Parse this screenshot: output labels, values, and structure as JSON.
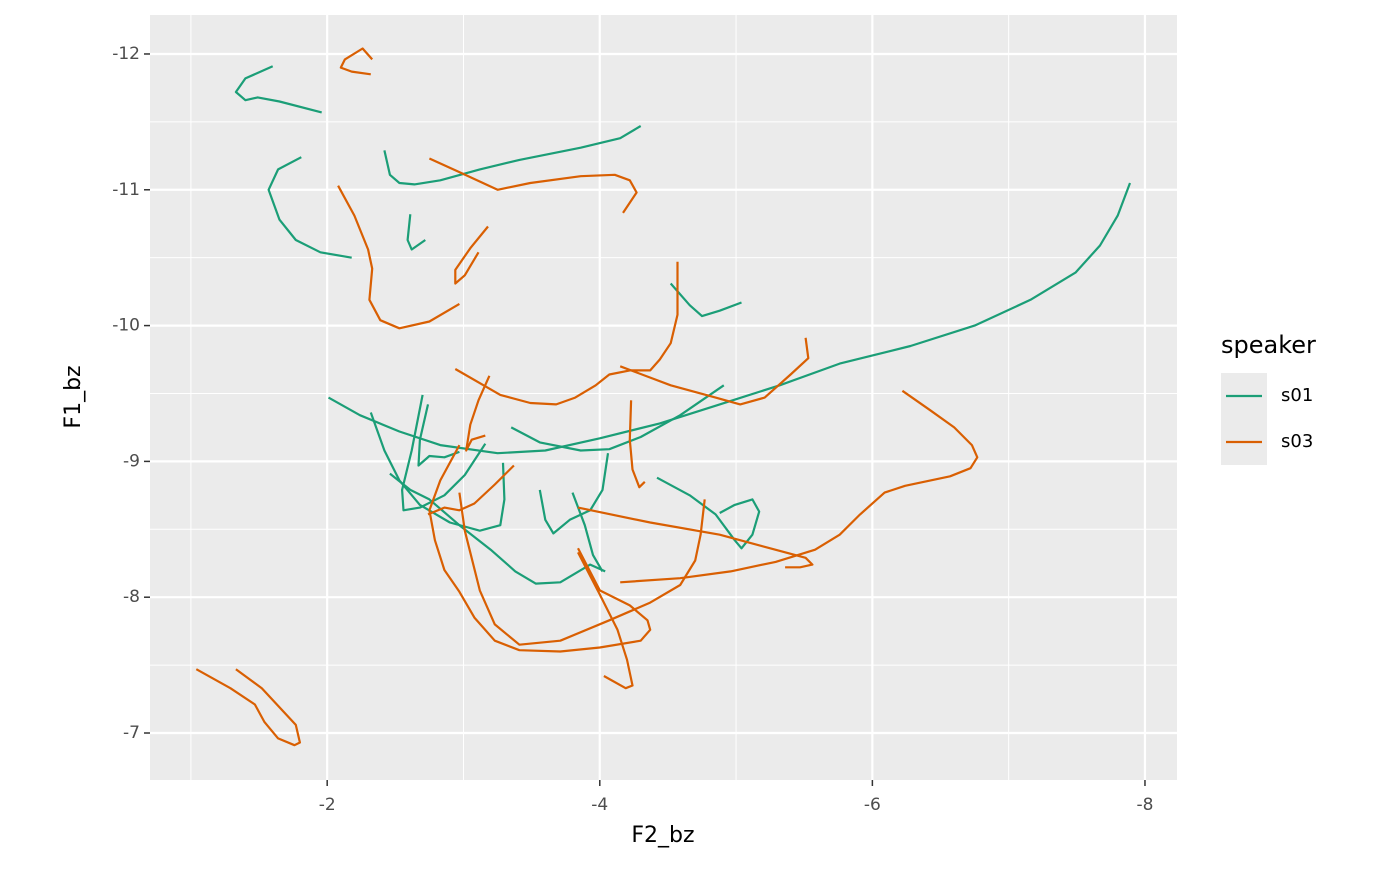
{
  "chart_data": {
    "type": "line",
    "x_label": "F2_bz",
    "y_label": "F1_bz",
    "xlim": [
      -0.7,
      -8.235
    ],
    "ylim": [
      -6.654,
      -12.287
    ],
    "xticks": [
      -2,
      -4,
      -6,
      -8
    ],
    "yticks": [
      -12,
      -11,
      -10,
      -9,
      -8,
      -7
    ],
    "xminorticks": [
      -1,
      -3,
      -5,
      -7
    ],
    "yminorticks": [
      -11.5,
      -10.5,
      -9.5,
      -8.5,
      -7.5
    ],
    "grid": true,
    "legend_title": "speaker",
    "legend_position": "right",
    "series": [
      {
        "name": "s01",
        "color": "#1b9e77",
        "tracks": [
          {
            "x": [
              -1.6,
              -1.4,
              -1.33,
              -1.4,
              -1.49,
              -1.65,
              -1.96
            ],
            "y": [
              -11.91,
              -11.82,
              -11.72,
              -11.66,
              -11.68,
              -11.65,
              -11.57
            ]
          },
          {
            "x": [
              -1.81,
              -1.64,
              -1.57,
              -1.65,
              -1.77,
              -1.95,
              -2.18
            ],
            "y": [
              -11.24,
              -11.15,
              -11.0,
              -10.78,
              -10.63,
              -10.54,
              -10.5
            ]
          },
          {
            "x": [
              -2.42,
              -2.46,
              -2.53,
              -2.64,
              -2.83,
              -3.12,
              -3.41,
              -3.86,
              -4.15,
              -4.3
            ],
            "y": [
              -11.29,
              -11.11,
              -11.05,
              -11.04,
              -11.07,
              -11.15,
              -11.22,
              -11.31,
              -11.38,
              -11.47
            ]
          },
          {
            "x": [
              -2.61,
              -2.59,
              -2.62,
              -2.72
            ],
            "y": [
              -10.82,
              -10.63,
              -10.56,
              -10.63
            ]
          },
          {
            "x": [
              -4.52,
              -4.66,
              -4.75,
              -4.88,
              -5.04
            ],
            "y": [
              -10.31,
              -10.15,
              -10.07,
              -10.11,
              -10.17
            ]
          },
          {
            "x": [
              -2.01,
              -2.24,
              -2.53,
              -2.83,
              -3.25,
              -3.6,
              -4.0,
              -4.44,
              -4.88,
              -5.32,
              -5.76,
              -6.28,
              -6.75,
              -7.16,
              -7.49,
              -7.67,
              -7.8,
              -7.89
            ],
            "y": [
              -9.47,
              -9.34,
              -9.22,
              -9.12,
              -9.06,
              -9.08,
              -9.17,
              -9.28,
              -9.42,
              -9.56,
              -9.72,
              -9.85,
              -10.0,
              -10.19,
              -10.39,
              -10.59,
              -10.81,
              -11.05
            ]
          },
          {
            "x": [
              -3.35,
              -3.56,
              -3.86,
              -4.07,
              -4.3,
              -4.59,
              -4.91
            ],
            "y": [
              -9.25,
              -9.14,
              -9.08,
              -9.09,
              -9.18,
              -9.34,
              -9.56
            ]
          },
          {
            "x": [
              -2.32,
              -2.42,
              -2.53,
              -2.68,
              -2.9,
              -3.12,
              -3.27,
              -3.3,
              -3.29
            ],
            "y": [
              -9.36,
              -9.08,
              -8.86,
              -8.68,
              -8.55,
              -8.49,
              -8.53,
              -8.72,
              -8.99
            ]
          },
          {
            "x": [
              -2.7,
              -2.62,
              -2.55,
              -2.56,
              -2.68,
              -2.86,
              -3.01,
              -3.16
            ],
            "y": [
              -9.49,
              -9.08,
              -8.79,
              -8.64,
              -8.66,
              -8.75,
              -8.9,
              -9.13
            ]
          },
          {
            "x": [
              -2.74,
              -2.68,
              -2.67,
              -2.75,
              -2.86,
              -2.97
            ],
            "y": [
              -9.42,
              -9.16,
              -8.97,
              -9.04,
              -9.03,
              -9.07
            ]
          },
          {
            "x": [
              -2.46,
              -2.61,
              -2.75,
              -2.97,
              -3.2,
              -3.38,
              -3.53,
              -3.71,
              -3.93,
              -4.04
            ],
            "y": [
              -8.91,
              -8.79,
              -8.72,
              -8.53,
              -8.35,
              -8.19,
              -8.1,
              -8.11,
              -8.24,
              -8.19
            ]
          },
          {
            "x": [
              -3.56,
              -3.6,
              -3.66,
              -3.78,
              -3.93,
              -4.02,
              -4.06
            ],
            "y": [
              -8.79,
              -8.57,
              -8.47,
              -8.57,
              -8.64,
              -8.79,
              -9.06
            ]
          },
          {
            "x": [
              -3.8,
              -3.89,
              -3.95,
              -4.02
            ],
            "y": [
              -8.77,
              -8.53,
              -8.31,
              -8.19
            ]
          },
          {
            "x": [
              -4.42,
              -4.66,
              -4.85,
              -4.99,
              -5.04,
              -5.12,
              -5.17,
              -5.12,
              -4.99,
              -4.88
            ],
            "y": [
              -8.88,
              -8.75,
              -8.61,
              -8.42,
              -8.36,
              -8.46,
              -8.63,
              -8.72,
              -8.68,
              -8.62
            ]
          }
        ]
      },
      {
        "name": "s03",
        "color": "#d95f02",
        "tracks": [
          {
            "x": [
              -2.33,
              -2.26,
              -2.13,
              -2.1,
              -2.18,
              -2.32
            ],
            "y": [
              -11.96,
              -12.04,
              -11.96,
              -11.9,
              -11.87,
              -11.85
            ]
          },
          {
            "x": [
              -2.75,
              -2.97,
              -3.25,
              -3.49,
              -3.86,
              -4.11,
              -4.22,
              -4.27,
              -4.17
            ],
            "y": [
              -11.23,
              -11.13,
              -11.0,
              -11.05,
              -11.1,
              -11.11,
              -11.07,
              -10.98,
              -10.83
            ]
          },
          {
            "x": [
              -2.08,
              -2.2,
              -2.3,
              -2.33,
              -2.31,
              -2.39,
              -2.53,
              -2.75,
              -2.97
            ],
            "y": [
              -11.03,
              -10.81,
              -10.56,
              -10.42,
              -10.19,
              -10.04,
              -9.98,
              -10.03,
              -10.16
            ]
          },
          {
            "x": [
              -3.18,
              -3.05,
              -2.94,
              -2.94,
              -3.01,
              -3.11
            ],
            "y": [
              -10.73,
              -10.57,
              -10.41,
              -10.31,
              -10.37,
              -10.54
            ]
          },
          {
            "x": [
              -2.94,
              -3.27,
              -3.49,
              -3.68,
              -3.82,
              -3.97,
              -4.07,
              -4.22,
              -4.37,
              -4.44,
              -4.52,
              -4.57,
              -4.57
            ],
            "y": [
              -9.68,
              -9.49,
              -9.43,
              -9.42,
              -9.47,
              -9.56,
              -9.64,
              -9.67,
              -9.67,
              -9.75,
              -9.87,
              -10.08,
              -10.47
            ]
          },
          {
            "x": [
              -4.15,
              -4.52,
              -4.85,
              -5.03,
              -5.21,
              -5.4,
              -5.53,
              -5.51
            ],
            "y": [
              -9.7,
              -9.56,
              -9.47,
              -9.42,
              -9.47,
              -9.64,
              -9.76,
              -9.91
            ]
          },
          {
            "x": [
              -3.19,
              -3.11,
              -3.05,
              -3.02,
              -3.06,
              -3.16
            ],
            "y": [
              -9.63,
              -9.45,
              -9.27,
              -9.08,
              -9.16,
              -9.19
            ]
          },
          {
            "x": [
              -4.23,
              -4.22,
              -4.24,
              -4.29,
              -4.33
            ],
            "y": [
              -9.45,
              -9.16,
              -8.94,
              -8.81,
              -8.85
            ]
          },
          {
            "x": [
              -3.37,
              -3.23,
              -3.08,
              -2.97,
              -2.86,
              -2.74
            ],
            "y": [
              -8.97,
              -8.83,
              -8.69,
              -8.64,
              -8.66,
              -8.61
            ]
          },
          {
            "x": [
              -2.97,
              -2.83,
              -2.75,
              -2.79,
              -2.86,
              -2.97,
              -3.08,
              -3.23,
              -3.41,
              -3.71,
              -4.0,
              -4.3,
              -4.37,
              -4.35,
              -4.22,
              -4.0,
              -3.84
            ],
            "y": [
              -9.12,
              -8.86,
              -8.64,
              -8.42,
              -8.2,
              -8.04,
              -7.85,
              -7.68,
              -7.61,
              -7.6,
              -7.63,
              -7.68,
              -7.76,
              -7.83,
              -7.94,
              -8.05,
              -8.36
            ]
          },
          {
            "x": [
              -3.84,
              -4.0,
              -4.13,
              -4.2,
              -4.24,
              -4.19,
              -4.03
            ],
            "y": [
              -8.33,
              -8.02,
              -7.76,
              -7.54,
              -7.35,
              -7.33,
              -7.42
            ]
          },
          {
            "x": [
              -2.97,
              -3.01,
              -3.12,
              -3.23,
              -3.41,
              -3.71,
              -4.07,
              -4.37,
              -4.59,
              -4.7,
              -4.74,
              -4.77
            ],
            "y": [
              -8.77,
              -8.49,
              -8.05,
              -7.8,
              -7.65,
              -7.68,
              -7.83,
              -7.96,
              -8.09,
              -8.27,
              -8.46,
              -8.72
            ]
          },
          {
            "x": [
              -3.84,
              -4.37,
              -4.88,
              -5.25,
              -5.51,
              -5.56,
              -5.47,
              -5.36
            ],
            "y": [
              -8.66,
              -8.55,
              -8.46,
              -8.36,
              -8.29,
              -8.24,
              -8.22,
              -8.22
            ]
          },
          {
            "x": [
              -4.15,
              -4.59,
              -4.96,
              -5.29,
              -5.58,
              -5.76,
              -5.91,
              -6.09,
              -6.24,
              -6.57,
              -6.72,
              -6.77,
              -6.73,
              -6.6,
              -6.42,
              -6.22
            ],
            "y": [
              -8.11,
              -8.14,
              -8.19,
              -8.26,
              -8.35,
              -8.46,
              -8.61,
              -8.77,
              -8.82,
              -8.89,
              -8.95,
              -9.03,
              -9.12,
              -9.25,
              -9.38,
              -9.52
            ]
          },
          {
            "x": [
              -1.04,
              -1.29,
              -1.47,
              -1.54,
              -1.64,
              -1.76,
              -1.8,
              -1.77,
              -1.52,
              -1.33
            ],
            "y": [
              -7.47,
              -7.33,
              -7.21,
              -7.08,
              -6.96,
              -6.91,
              -6.93,
              -7.06,
              -7.33,
              -7.47
            ]
          }
        ]
      }
    ]
  }
}
